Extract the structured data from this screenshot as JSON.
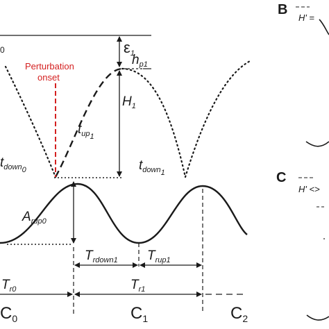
{
  "figure": {
    "panel_b": {
      "letter": "B",
      "h_label": "H'",
      "equals": " ="
    },
    "panel_c": {
      "letter": "C",
      "h_label": "H' <>"
    },
    "edge_label": "0",
    "perturbation": {
      "line1": "Perturbation",
      "line2": "onset"
    },
    "labels": {
      "epsilon": {
        "main": "ε",
        "sub": "1"
      },
      "h_p": {
        "main": "h",
        "sub": "p1"
      },
      "H": {
        "main": "H",
        "sub": "1"
      },
      "t_up": {
        "main": "t",
        "sub": "up",
        "subsub": "1"
      },
      "t_down0": {
        "main": "t",
        "sub": "down",
        "subsub": "0"
      },
      "t_down1": {
        "main": "t",
        "sub": "down",
        "subsub": "1"
      },
      "A_rup0": {
        "main": "A",
        "sub": "rup0"
      },
      "T_rdown1": {
        "main": "T",
        "sub": "rdown1"
      },
      "T_rup1": {
        "main": "T",
        "sub": "rup1"
      },
      "T_r0": {
        "main": "T",
        "sub": "r0"
      },
      "T_r1": {
        "main": "T",
        "sub": "r1"
      },
      "C0": {
        "main": "C",
        "sub": "0"
      },
      "C1": {
        "main": "C",
        "sub": "1"
      },
      "C2": {
        "main": "C",
        "sub": "2"
      }
    }
  }
}
